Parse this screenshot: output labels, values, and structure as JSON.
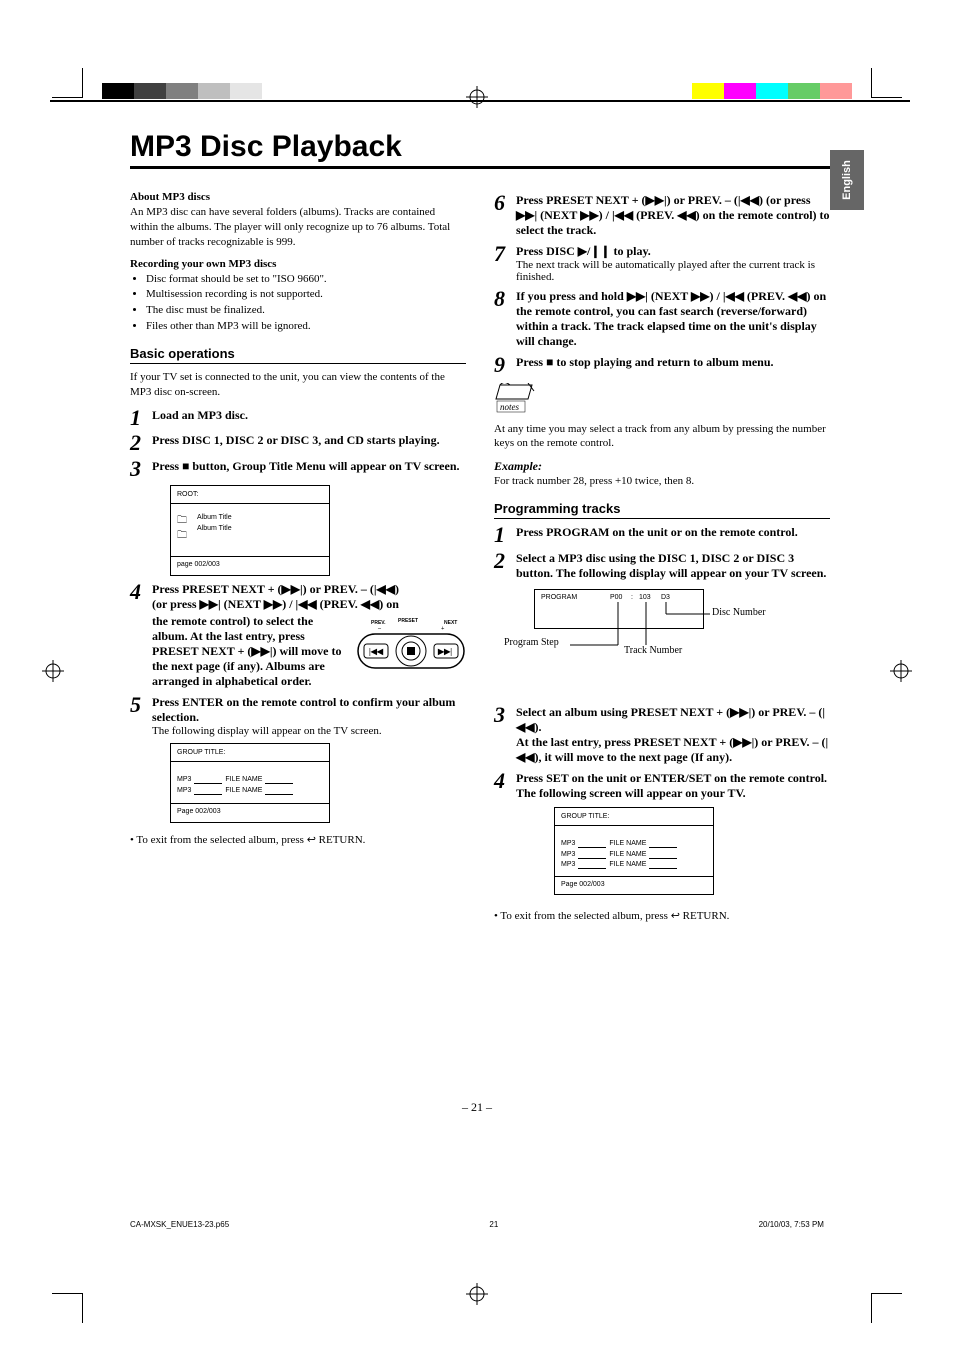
{
  "print_marks": {
    "colorbar_left": [
      "#000000",
      "#000000",
      "#404040",
      "#404040",
      "#808080",
      "#808080",
      "#bfbfbf",
      "#bfbfbf",
      "#e5e5e5",
      "#e5e5e5"
    ],
    "colorbar_right": [
      "#ffff00",
      "#ffff00",
      "#ff00ff",
      "#ff00ff",
      "#00ffff",
      "#00ffff",
      "#66cc66",
      "#66cc66",
      "#ff9999",
      "#ff9999"
    ]
  },
  "side_tab": "English",
  "title": "MP3 Disc Playback",
  "left": {
    "about_h": "About MP3 discs",
    "about_body": "An MP3 disc can have several folders (albums). Tracks are contained within the albums. The player will only recognize up to 76 albums. Total number of tracks recognizable is 999.",
    "rec_h": "Recording your own MP3 discs",
    "rec_bullets": [
      "Disc format should be set to \"ISO 9660\".",
      "Multisession recording is not supported.",
      "The disc must be finalized.",
      "Files other than MP3 will be ignored."
    ],
    "basic_h": "Basic operations",
    "basic_body": "If your TV set is connected to the unit, you can view the contents of the MP3 disc on-screen.",
    "steps": {
      "s1": "Load an MP3 disc.",
      "s2": "Press DISC 1, DISC 2 or DISC 3, and CD starts playing.",
      "s3": "Press ■ button, Group Title Menu will appear on TV screen.",
      "s4a": "Press PRESET NEXT + (▶▶|) or PREV. – (|◀◀)",
      "s4b": "(or press ▶▶| (NEXT ▶▶) / |◀◀ (PREV. ◀◀) on",
      "s4c": "the remote control) to select the album. At the last entry, press PRESET NEXT + (▶▶|) will move to the next page (if any). Albums are arranged in alphabetical order.",
      "s5a": "Press ENTER on the remote control to confirm your album selection.",
      "s5b": "The following display will appear on the TV screen."
    },
    "tv1": {
      "root": "ROOT:",
      "ic": "🗀",
      "a1": "Album Title",
      "a2": "Album Title",
      "page": "page 002/003"
    },
    "tv2": {
      "h": "GROUP TITLE:",
      "r1a": "MP3",
      "r1b": "FILE NAME",
      "r2a": "MP3",
      "r2b": "FILE NAME",
      "page": "Page 002/003"
    },
    "exit": "• To exit from the selected album, press ↩ RETURN."
  },
  "right": {
    "s6": "Press PRESET NEXT + (▶▶|) or PREV. – (|◀◀) (or press ▶▶| (NEXT ▶▶) / |◀◀ (PREV. ◀◀) on the remote control) to select the track.",
    "s7a": "Press DISC ▶/❙❙ to play.",
    "s7b": "The next track will be automatically played after the current track is finished.",
    "s8": "If you press and hold ▶▶| (NEXT ▶▶) / |◀◀ (PREV. ◀◀) on the remote control, you can fast search (reverse/forward) within a track. The track elapsed time on the unit's display will change.",
    "s9": "Press ■ to stop playing and return to album menu.",
    "note_body": "At any time you may select a track from any album by pressing the number keys on the remote control.",
    "example_h": "Example:",
    "example_body": "For track number 28, press +10 twice, then 8.",
    "prog_h": "Programming tracks",
    "p1": "Press PROGRAM on the unit or on the remote control.",
    "p2": "Select a MP3 disc using the DISC 1, DISC 2 or DISC 3 button. The following display will appear on your TV screen.",
    "display": {
      "program": "PROGRAM",
      "p00": "P00",
      "colon": ":",
      "tn": "103",
      "dn": "D3",
      "ann_disc": "Disc Number",
      "ann_step": "Program Step",
      "ann_track": "Track Number"
    },
    "p3": "Select an album using PRESET NEXT + (▶▶|) or PREV. – (|◀◀).",
    "p3b": "At the last entry, press PRESET NEXT + (▶▶|) or PREV. – (|◀◀), it will move to the next page (If any).",
    "p4": " Press SET on the unit or ENTER/SET on the remote control. The following screen will appear on your TV.",
    "tv3": {
      "h": "GROUP TITLE:",
      "r1a": "MP3",
      "r1b": "FILE NAME",
      "r2a": "MP3",
      "r2b": "FILE NAME",
      "r3a": "MP3",
      "r3b": "FILE NAME",
      "page": "Page 002/003"
    },
    "exit": "• To exit from the selected album, press ↩ RETURN."
  },
  "page_num": "– 21 –",
  "footer": {
    "file": "CA-MXSK_ENUE13-23.p65",
    "page": "21",
    "date": "20/10/03, 7:53 PM"
  }
}
